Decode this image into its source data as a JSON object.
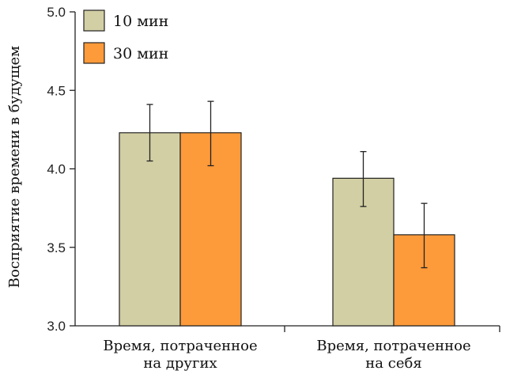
{
  "chart_data": {
    "type": "bar",
    "ylabel": "Восприятие времени в будущем",
    "ylim": [
      3.0,
      5.0
    ],
    "yticks": [
      "3.0",
      "3.5",
      "4.0",
      "4.5",
      "5.0"
    ],
    "categories": [
      [
        "Время, потраченное",
        "на других"
      ],
      [
        "Время, потраченное",
        "на себя"
      ]
    ],
    "series": [
      {
        "name": "10 мин",
        "color": "#d2cfa4",
        "values": [
          4.23,
          3.94
        ],
        "err_low": [
          4.05,
          3.76
        ],
        "err_high": [
          4.41,
          4.11
        ]
      },
      {
        "name": "30 мин",
        "color": "#fd9a3a",
        "values": [
          4.23,
          3.58
        ],
        "err_low": [
          4.02,
          3.37
        ],
        "err_high": [
          4.43,
          3.78
        ]
      }
    ],
    "legend_position": "top-left",
    "grid": false
  }
}
